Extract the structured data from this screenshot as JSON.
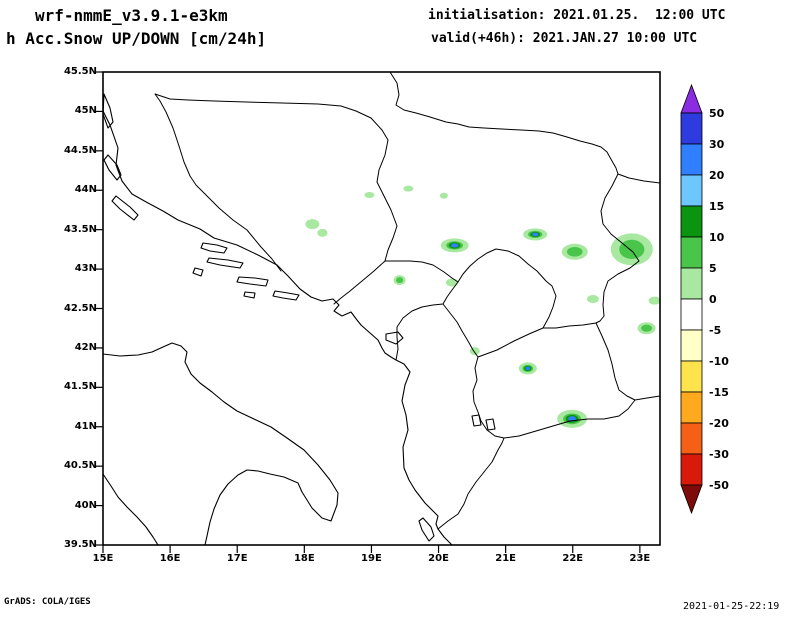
{
  "header": {
    "model": "wrf-nmmE_v3.9.1-e3km",
    "product": "h Acc.Snow UP/DOWN [cm/24h]",
    "init": "initialisation: 2021.01.25.  12:00 UTC",
    "valid": "valid(+46h): 2021.JAN.27 10:00 UTC"
  },
  "footer": {
    "credit": "GrADS: COLA/IGES",
    "timestamp": "2021-01-25-22:19"
  },
  "map": {
    "lon_min": 15,
    "lon_max": 23.3,
    "lat_min": 39.5,
    "lat_max": 45.5,
    "lat_labels": [
      "45.5N",
      "45N",
      "44.5N",
      "44N",
      "43.5N",
      "43N",
      "42.5N",
      "42N",
      "41.5N",
      "41N",
      "40.5N",
      "40N",
      "39.5N"
    ],
    "lon_labels": [
      "15E",
      "16E",
      "17E",
      "18E",
      "19E",
      "20E",
      "21E",
      "22E",
      "23E"
    ]
  },
  "colorbar": {
    "labels": [
      "50",
      "30",
      "20",
      "15",
      "10",
      "5",
      "0",
      "-5",
      "-10",
      "-15",
      "-20",
      "-30",
      "-50"
    ],
    "band_colors": [
      "#2e3bdf",
      "#2f7fff",
      "#6ec6ff",
      "#0a9410",
      "#49c549",
      "#a8e8a0",
      "#ffffff",
      "#ffffc8",
      "#ffe34d",
      "#ffaa1e",
      "#f66016",
      "#d81a0a"
    ],
    "arrow_top_color": "#8a2ce2",
    "arrow_bottom_color": "#7e0a0a"
  },
  "patch_colors": {
    "light": "#a8e8a0",
    "mid": "#49c549",
    "dark": "#0a9410",
    "core": "#2f7fff"
  },
  "snow_patches": [
    {
      "lon": 18.12,
      "lat": 43.57,
      "rx": 7,
      "ry": 5,
      "intensity": "light"
    },
    {
      "lon": 18.27,
      "lat": 43.46,
      "rx": 5,
      "ry": 4,
      "intensity": "light"
    },
    {
      "lon": 18.97,
      "lat": 43.94,
      "rx": 5,
      "ry": 3,
      "intensity": "light"
    },
    {
      "lon": 19.55,
      "lat": 44.02,
      "rx": 5,
      "ry": 3,
      "intensity": "light"
    },
    {
      "lon": 20.08,
      "lat": 43.93,
      "rx": 4,
      "ry": 3,
      "intensity": "light"
    },
    {
      "lon": 19.42,
      "lat": 42.86,
      "rx": 6,
      "ry": 5,
      "intensity": "medium"
    },
    {
      "lon": 20.24,
      "lat": 43.3,
      "rx": 14,
      "ry": 7,
      "intensity": "heavy"
    },
    {
      "lon": 20.2,
      "lat": 42.83,
      "rx": 6,
      "ry": 4,
      "intensity": "light"
    },
    {
      "lon": 21.44,
      "lat": 43.44,
      "rx": 12,
      "ry": 6,
      "intensity": "heavy"
    },
    {
      "lon": 22.03,
      "lat": 43.22,
      "rx": 13,
      "ry": 8,
      "intensity": "medium"
    },
    {
      "lon": 22.3,
      "lat": 42.62,
      "rx": 6,
      "ry": 4,
      "intensity": "light"
    },
    {
      "lon": 22.88,
      "lat": 43.25,
      "rx": 21,
      "ry": 16,
      "intensity": "medium"
    },
    {
      "lon": 23.22,
      "lat": 42.6,
      "rx": 6,
      "ry": 4,
      "intensity": "light"
    },
    {
      "lon": 23.1,
      "lat": 42.25,
      "rx": 9,
      "ry": 6,
      "intensity": "medium"
    },
    {
      "lon": 20.54,
      "lat": 41.96,
      "rx": 5,
      "ry": 4,
      "intensity": "light"
    },
    {
      "lon": 21.33,
      "lat": 41.74,
      "rx": 9,
      "ry": 6,
      "intensity": "heavy"
    },
    {
      "lon": 21.99,
      "lat": 41.1,
      "rx": 15,
      "ry": 9,
      "intensity": "heavy"
    }
  ]
}
